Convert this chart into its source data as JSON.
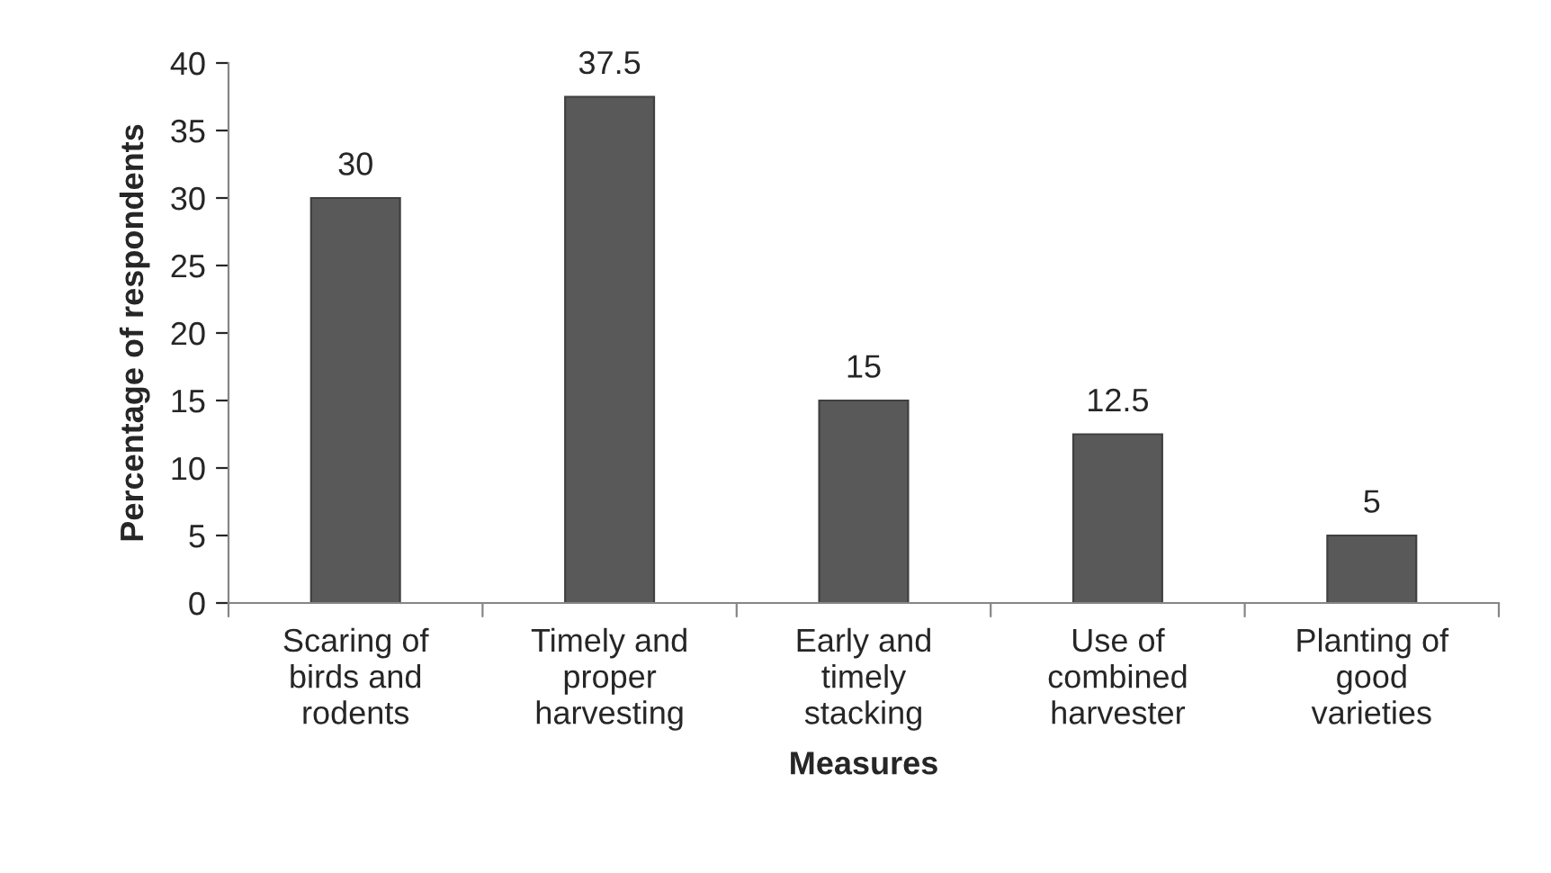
{
  "chart_data": {
    "type": "bar",
    "categories": [
      "Scaring of\nbirds and\nrodents",
      "Timely and\nproper\nharvesting",
      "Early and\ntimely\nstacking",
      "Use of\ncombined\nharvester",
      "Planting of\ngood\nvarieties"
    ],
    "values": [
      30,
      37.5,
      15,
      12.5,
      5
    ],
    "color": "#595959",
    "xlabel": "Measures",
    "ylabel": "Percentage of respondents",
    "ylim": [
      0,
      40
    ],
    "yticks": [
      0,
      5,
      10,
      15,
      20,
      25,
      30,
      35,
      40
    ],
    "data_labels": true,
    "grid": false,
    "legend": false
  }
}
